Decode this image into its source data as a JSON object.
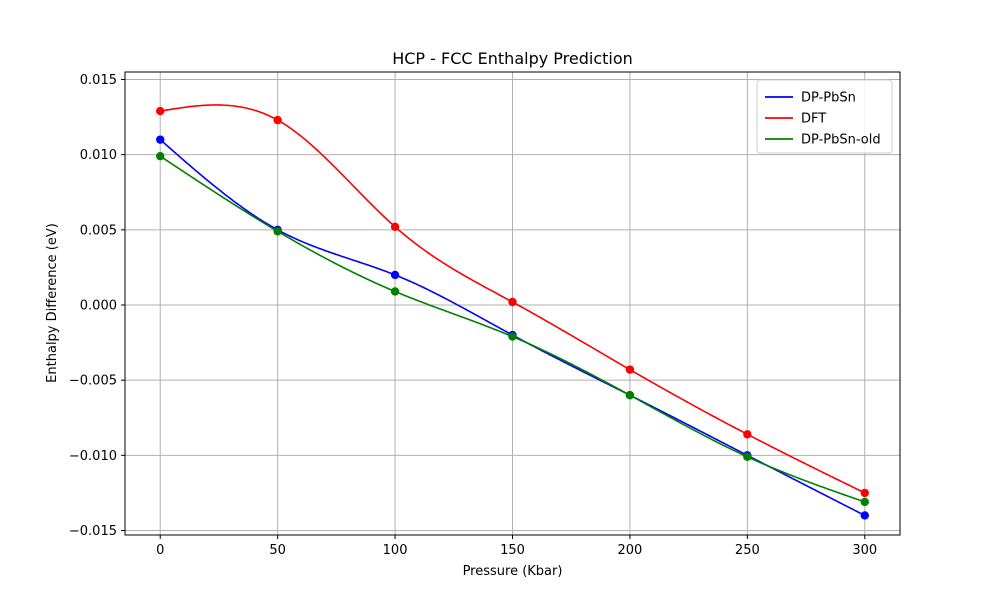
{
  "chart_data": {
    "type": "line",
    "title": "HCP - FCC Enthalpy Prediction",
    "xlabel": "Pressure (Kbar)",
    "ylabel": "Enthalpy Difference (eV)",
    "x": [
      0,
      50,
      100,
      150,
      200,
      250,
      300
    ],
    "xlim": [
      -15,
      315
    ],
    "ylim": [
      -0.0153,
      0.0155
    ],
    "xticks": [
      0,
      50,
      100,
      150,
      200,
      250,
      300
    ],
    "xtick_labels": [
      "0",
      "50",
      "100",
      "150",
      "200",
      "250",
      "300"
    ],
    "yticks": [
      -0.015,
      -0.01,
      -0.005,
      0.0,
      0.005,
      0.01,
      0.015
    ],
    "ytick_labels": [
      "−0.015",
      "−0.010",
      "−0.005",
      "0.000",
      "0.005",
      "0.010",
      "0.015"
    ],
    "grid": true,
    "legend_position": "top-right",
    "series": [
      {
        "name": "DP-PbSn",
        "color": "#0000ff",
        "values": [
          0.011,
          0.005,
          0.002,
          -0.002,
          -0.006,
          -0.01,
          -0.014
        ]
      },
      {
        "name": "DFT",
        "color": "#ff0000",
        "values": [
          0.0129,
          0.0123,
          0.0052,
          0.0002,
          -0.0043,
          -0.0086,
          -0.0125
        ]
      },
      {
        "name": "DP-PbSn-old",
        "color": "#008000",
        "values": [
          0.0099,
          0.0049,
          0.0009,
          -0.0021,
          -0.006,
          -0.0101,
          -0.0131
        ]
      }
    ]
  }
}
